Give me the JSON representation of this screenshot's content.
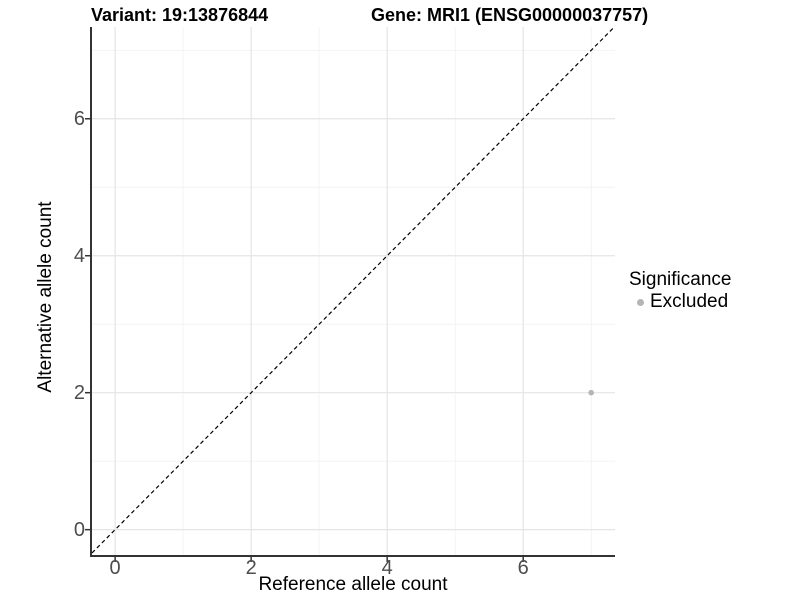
{
  "header": {
    "variant_title": "Variant: 19:13876844",
    "gene_title": "Gene: MRI1 (ENSG00000037757)"
  },
  "chart_data": {
    "type": "scatter",
    "xlabel": "Reference allele count",
    "ylabel": "Alternative allele count",
    "xlim": [
      -0.34,
      7.35
    ],
    "ylim": [
      -0.37,
      7.34
    ],
    "x_ticks": [
      0,
      2,
      4,
      6
    ],
    "y_ticks": [
      0,
      2,
      4,
      6
    ],
    "x_minor_gridlines": [
      1,
      3,
      5,
      7
    ],
    "y_minor_gridlines": [
      1,
      3,
      5,
      7
    ],
    "grid": true,
    "points": [
      {
        "x": 7,
        "y": 2,
        "series": "Excluded"
      }
    ],
    "reference_line": {
      "kind": "y=x",
      "style": "dashed"
    },
    "legend": {
      "title": "Significance",
      "position": "right",
      "items": [
        {
          "label": "Excluded",
          "color": "#b5b5b5"
        }
      ]
    },
    "colors": {
      "point": "#b5b5b5",
      "axis_line": "#333333",
      "tick_mark": "#333333",
      "tick_label": "#4d4d4d",
      "grid_major": "#e5e5e5",
      "grid_minor": "#f2f2f2",
      "reference_line": "#000000",
      "panel_background": "#ffffff"
    }
  }
}
